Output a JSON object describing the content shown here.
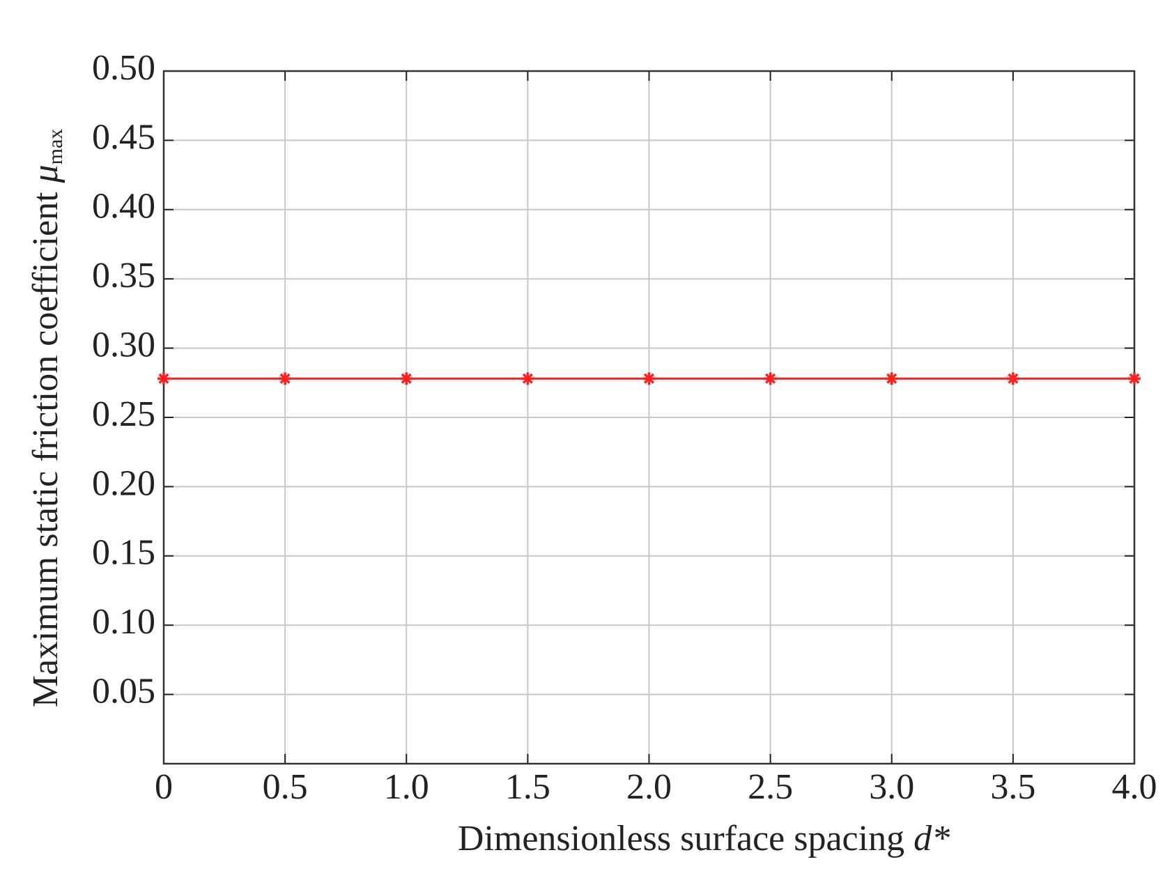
{
  "chart_data": {
    "type": "line",
    "x_label": "Dimensionless surface spacing",
    "x_label_symbol": "d*",
    "y_label": "Maximum static friction coefficient",
    "y_label_symbol": "μ",
    "y_label_subscript": "max",
    "x": [
      0,
      0.5,
      1.0,
      1.5,
      2.0,
      2.5,
      3.0,
      3.5,
      4.0
    ],
    "series": [
      {
        "color": "#ff2020",
        "values": [
          0.278,
          0.278,
          0.278,
          0.278,
          0.278,
          0.278,
          0.278,
          0.278,
          0.278
        ]
      }
    ],
    "xlim": [
      0,
      4
    ],
    "ylim": [
      0,
      0.5
    ],
    "xticks": [
      0,
      0.5,
      {
        "value": 1,
        "label": "1.0"
      },
      1.5,
      {
        "value": 2,
        "label": "2.0"
      },
      2.5,
      {
        "value": 3,
        "label": "3.0"
      },
      3.5,
      {
        "value": 4,
        "label": "4.0"
      }
    ],
    "yticks": [
      {
        "value": 0.05,
        "label": "0.05"
      },
      {
        "value": 0.1,
        "label": "0.10"
      },
      {
        "value": 0.15,
        "label": "0.15"
      },
      {
        "value": 0.2,
        "label": "0.20"
      },
      {
        "value": 0.25,
        "label": "0.25"
      },
      {
        "value": 0.3,
        "label": "0.30"
      },
      {
        "value": 0.35,
        "label": "0.35"
      },
      {
        "value": 0.4,
        "label": "0.40"
      },
      {
        "value": 0.45,
        "label": "0.45"
      },
      {
        "value": 0.5,
        "label": "0.50"
      }
    ],
    "grid": true
  }
}
